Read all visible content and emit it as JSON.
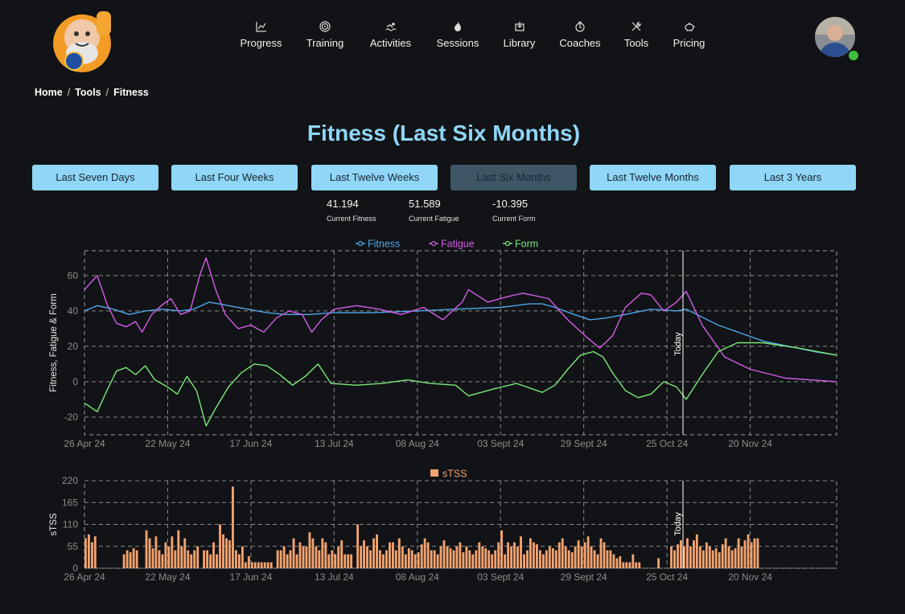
{
  "nav": {
    "items": [
      {
        "label": "Progress",
        "icon": "chart-line-icon"
      },
      {
        "label": "Training",
        "icon": "target-icon"
      },
      {
        "label": "Activities",
        "icon": "swimmer-icon"
      },
      {
        "label": "Sessions",
        "icon": "flame-icon"
      },
      {
        "label": "Library",
        "icon": "book-icon"
      },
      {
        "label": "Coaches",
        "icon": "stopwatch-icon"
      },
      {
        "label": "Tools",
        "icon": "tools-icon"
      },
      {
        "label": "Pricing",
        "icon": "piggy-bank-icon"
      }
    ]
  },
  "breadcrumb": {
    "home": "Home",
    "tools": "Tools",
    "current": "Fitness"
  },
  "page_title": "Fitness (Last Six Months)",
  "ranges": [
    {
      "label": "Last Seven Days",
      "active": false
    },
    {
      "label": "Last Four Weeks",
      "active": false
    },
    {
      "label": "Last Twelve Weeks",
      "active": false
    },
    {
      "label": "Last Six Months",
      "active": true
    },
    {
      "label": "Last Twelve Months",
      "active": false
    },
    {
      "label": "Last 3 Years",
      "active": false
    }
  ],
  "stats": {
    "fitness": {
      "value": "41.194",
      "label": "Current Fitness"
    },
    "fatigue": {
      "value": "51.589",
      "label": "Current Fatigue"
    },
    "form": {
      "value": "-10.395",
      "label": "Current Form"
    }
  },
  "colors": {
    "accent": "#8fd6f7",
    "fitness": "#4fa6e8",
    "fatigue": "#d45ce8",
    "form": "#7ce87a",
    "stss": "#f4a36f",
    "active_button": "#3e5665"
  },
  "chart_data": [
    {
      "type": "line",
      "ylabel": "Fitness, Fatigue & Form",
      "xlabel": "",
      "x_start": "2024-04-26",
      "x_end": "2024-12-17",
      "today": "2024-10-30",
      "today_label": "Today",
      "x_tick_labels": [
        "26 Apr 24",
        "22 May 24",
        "17 Jun 24",
        "13 Jul 24",
        "08 Aug 24",
        "03 Sept 24",
        "29 Sept 24",
        "25 Oct 24",
        "20 Nov 24"
      ],
      "y_ticks": [
        -20,
        0,
        20,
        40,
        60
      ],
      "ylim": [
        -30,
        74
      ],
      "grid": true,
      "legend": "top-center",
      "series": [
        {
          "name": "Fitness",
          "points": [
            [
              "2024-04-26",
              40
            ],
            [
              "2024-04-30",
              43
            ],
            [
              "2024-05-05",
              41
            ],
            [
              "2024-05-10",
              38
            ],
            [
              "2024-05-15",
              40
            ],
            [
              "2024-05-20",
              41
            ],
            [
              "2024-05-26",
              40
            ],
            [
              "2024-05-30",
              41
            ],
            [
              "2024-06-04",
              45
            ],
            [
              "2024-06-10",
              43
            ],
            [
              "2024-06-16",
              41
            ],
            [
              "2024-06-22",
              39
            ],
            [
              "2024-06-28",
              38
            ],
            [
              "2024-07-05",
              38
            ],
            [
              "2024-07-13",
              39
            ],
            [
              "2024-07-25",
              39
            ],
            [
              "2024-08-08",
              40
            ],
            [
              "2024-08-20",
              41
            ],
            [
              "2024-09-03",
              42
            ],
            [
              "2024-09-12",
              44
            ],
            [
              "2024-09-16",
              44
            ],
            [
              "2024-09-20",
              42
            ],
            [
              "2024-09-26",
              38
            ],
            [
              "2024-10-01",
              35
            ],
            [
              "2024-10-06",
              36
            ],
            [
              "2024-10-12",
              38
            ],
            [
              "2024-10-20",
              41
            ],
            [
              "2024-10-28",
              40
            ],
            [
              "2024-10-31",
              41
            ],
            [
              "2024-11-10",
              32
            ],
            [
              "2024-11-24",
              23
            ],
            [
              "2024-12-10",
              17
            ],
            [
              "2024-12-17",
              15
            ]
          ]
        },
        {
          "name": "Fatigue",
          "points": [
            [
              "2024-04-26",
              52
            ],
            [
              "2024-04-30",
              60
            ],
            [
              "2024-05-03",
              44
            ],
            [
              "2024-05-06",
              33
            ],
            [
              "2024-05-09",
              31
            ],
            [
              "2024-05-12",
              34
            ],
            [
              "2024-05-14",
              28
            ],
            [
              "2024-05-17",
              38
            ],
            [
              "2024-05-20",
              43
            ],
            [
              "2024-05-23",
              47
            ],
            [
              "2024-05-26",
              38
            ],
            [
              "2024-05-29",
              40
            ],
            [
              "2024-06-01",
              60
            ],
            [
              "2024-06-03",
              70
            ],
            [
              "2024-06-06",
              52
            ],
            [
              "2024-06-09",
              38
            ],
            [
              "2024-06-13",
              30
            ],
            [
              "2024-06-17",
              32
            ],
            [
              "2024-06-21",
              28
            ],
            [
              "2024-06-25",
              36
            ],
            [
              "2024-06-29",
              40
            ],
            [
              "2024-07-03",
              38
            ],
            [
              "2024-07-06",
              28
            ],
            [
              "2024-07-09",
              35
            ],
            [
              "2024-07-13",
              41
            ],
            [
              "2024-07-20",
              43
            ],
            [
              "2024-07-27",
              41
            ],
            [
              "2024-08-03",
              38
            ],
            [
              "2024-08-10",
              42
            ],
            [
              "2024-08-16",
              35
            ],
            [
              "2024-08-22",
              45
            ],
            [
              "2024-08-24",
              52
            ],
            [
              "2024-08-30",
              45
            ],
            [
              "2024-09-05",
              48
            ],
            [
              "2024-09-10",
              50
            ],
            [
              "2024-09-18",
              47
            ],
            [
              "2024-09-24",
              35
            ],
            [
              "2024-09-30",
              25
            ],
            [
              "2024-10-04",
              19
            ],
            [
              "2024-10-08",
              26
            ],
            [
              "2024-10-12",
              42
            ],
            [
              "2024-10-17",
              50
            ],
            [
              "2024-10-20",
              49
            ],
            [
              "2024-10-24",
              40
            ],
            [
              "2024-10-28",
              45
            ],
            [
              "2024-10-31",
              51
            ],
            [
              "2024-11-05",
              32
            ],
            [
              "2024-11-12",
              14
            ],
            [
              "2024-11-20",
              7
            ],
            [
              "2024-12-01",
              2
            ],
            [
              "2024-12-17",
              0
            ]
          ]
        },
        {
          "name": "Form",
          "points": [
            [
              "2024-04-26",
              -12
            ],
            [
              "2024-04-30",
              -17
            ],
            [
              "2024-05-03",
              -5
            ],
            [
              "2024-05-06",
              6
            ],
            [
              "2024-05-09",
              8
            ],
            [
              "2024-05-12",
              4
            ],
            [
              "2024-05-15",
              9
            ],
            [
              "2024-05-18",
              1
            ],
            [
              "2024-05-22",
              -3
            ],
            [
              "2024-05-25",
              -7
            ],
            [
              "2024-05-28",
              3
            ],
            [
              "2024-05-31",
              -5
            ],
            [
              "2024-06-03",
              -25
            ],
            [
              "2024-06-06",
              -15
            ],
            [
              "2024-06-10",
              -3
            ],
            [
              "2024-06-14",
              5
            ],
            [
              "2024-06-18",
              10
            ],
            [
              "2024-06-22",
              9
            ],
            [
              "2024-06-26",
              4
            ],
            [
              "2024-06-30",
              -2
            ],
            [
              "2024-07-04",
              3
            ],
            [
              "2024-07-08",
              10
            ],
            [
              "2024-07-12",
              -1
            ],
            [
              "2024-07-20",
              -2
            ],
            [
              "2024-07-28",
              -1
            ],
            [
              "2024-08-05",
              1
            ],
            [
              "2024-08-12",
              -1
            ],
            [
              "2024-08-20",
              -2
            ],
            [
              "2024-08-24",
              -8
            ],
            [
              "2024-09-01",
              -4
            ],
            [
              "2024-09-08",
              -1
            ],
            [
              "2024-09-16",
              -6
            ],
            [
              "2024-09-20",
              -2
            ],
            [
              "2024-09-24",
              7
            ],
            [
              "2024-09-28",
              15
            ],
            [
              "2024-10-02",
              17
            ],
            [
              "2024-10-05",
              14
            ],
            [
              "2024-10-08",
              5
            ],
            [
              "2024-10-12",
              -5
            ],
            [
              "2024-10-16",
              -9
            ],
            [
              "2024-10-20",
              -7
            ],
            [
              "2024-10-24",
              0
            ],
            [
              "2024-10-28",
              -3
            ],
            [
              "2024-10-31",
              -10
            ],
            [
              "2024-11-05",
              4
            ],
            [
              "2024-11-10",
              17
            ],
            [
              "2024-11-16",
              22
            ],
            [
              "2024-11-24",
              22
            ],
            [
              "2024-12-05",
              19
            ],
            [
              "2024-12-17",
              15
            ]
          ]
        }
      ]
    },
    {
      "type": "bar",
      "ylabel": "sTSS",
      "xlabel": "",
      "x_start": "2024-04-26",
      "x_end": "2024-12-17",
      "today": "2024-10-30",
      "today_label": "Today",
      "x_tick_labels": [
        "26 Apr 24",
        "22 May 24",
        "17 Jun 24",
        "13 Jul 24",
        "08 Aug 24",
        "03 Sept 24",
        "29 Sept 24",
        "25 Oct 24",
        "20 Nov 24"
      ],
      "y_ticks": [
        0,
        55,
        110,
        165,
        220
      ],
      "ylim": [
        0,
        220
      ],
      "grid": true,
      "legend": "top-center",
      "series": [
        {
          "name": "sTSS"
        }
      ],
      "start_date": "2024-04-26",
      "values": [
        75,
        85,
        65,
        80,
        0,
        0,
        0,
        0,
        0,
        0,
        0,
        0,
        35,
        45,
        40,
        50,
        45,
        0,
        0,
        95,
        75,
        50,
        80,
        45,
        35,
        65,
        55,
        80,
        45,
        95,
        55,
        75,
        45,
        35,
        45,
        55,
        0,
        45,
        45,
        35,
        65,
        35,
        110,
        85,
        75,
        70,
        205,
        45,
        35,
        55,
        15,
        30,
        15,
        15,
        15,
        15,
        15,
        15,
        15,
        0,
        45,
        45,
        55,
        35,
        45,
        75,
        35,
        65,
        55,
        55,
        90,
        75,
        55,
        45,
        75,
        65,
        35,
        45,
        35,
        55,
        70,
        35,
        35,
        35,
        0,
        110,
        55,
        70,
        55,
        45,
        75,
        85,
        45,
        35,
        45,
        65,
        65,
        45,
        75,
        55,
        35,
        50,
        45,
        35,
        40,
        60,
        75,
        65,
        45,
        45,
        35,
        55,
        70,
        55,
        50,
        45,
        55,
        65,
        40,
        55,
        45,
        35,
        45,
        65,
        55,
        50,
        45,
        35,
        45,
        65,
        95,
        35,
        65,
        55,
        65,
        55,
        80,
        35,
        45,
        75,
        65,
        60,
        45,
        35,
        45,
        55,
        50,
        45,
        65,
        75,
        55,
        45,
        40,
        55,
        70,
        55,
        65,
        80,
        55,
        45,
        35,
        75,
        65,
        45,
        45,
        35,
        25,
        30,
        15,
        15,
        15,
        35,
        15,
        15,
        0,
        0,
        0,
        0,
        0,
        25,
        0,
        0,
        0,
        55,
        45,
        60,
        70,
        55,
        75,
        55,
        70,
        85,
        55,
        45,
        65,
        55,
        45,
        50,
        40,
        60,
        75,
        55,
        45,
        50,
        75,
        55,
        70,
        85,
        65,
        75,
        75
      ]
    }
  ]
}
